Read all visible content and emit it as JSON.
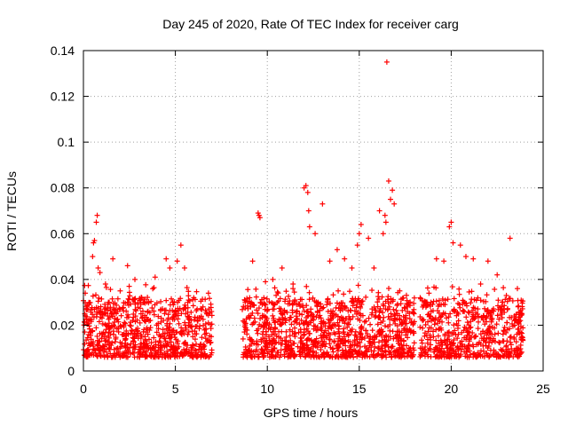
{
  "chart_data": {
    "type": "scatter",
    "title": "Day 245 of 2020, Rate Of TEC Index for receiver carg",
    "xlabel": "GPS time / hours",
    "ylabel": "ROTI / TECUs",
    "xlim": [
      0,
      25
    ],
    "ylim": [
      0,
      0.14
    ],
    "xticks": [
      0,
      5,
      10,
      15,
      20,
      25
    ],
    "yticks": [
      0,
      0.02,
      0.04,
      0.06,
      0.08,
      0.1,
      0.12,
      0.14
    ],
    "xtick_labels": [
      "0",
      "5",
      "10",
      "15",
      "20",
      "25"
    ],
    "ytick_labels": [
      "0",
      "0.02",
      "0.04",
      "0.06",
      "0.08",
      "0.1",
      "0.12",
      "0.14"
    ],
    "grid": true,
    "marker": "+",
    "series_color": "#ff0000",
    "data_gaps_hours": [
      [
        7.0,
        8.6
      ],
      [
        18.0,
        18.3
      ],
      [
        23.9,
        25
      ]
    ],
    "series": [
      {
        "name": "ROTI",
        "x": [
          0.1,
          0.3,
          0.5,
          0.55,
          0.6,
          0.7,
          0.75,
          0.8,
          0.9,
          1.2,
          1.4,
          1.6,
          2.0,
          2.4,
          2.8,
          3.3,
          3.9,
          4.5,
          4.7,
          5.1,
          5.3,
          5.5,
          6.0,
          6.5,
          6.8,
          8.8,
          9.2,
          9.5,
          9.55,
          9.6,
          9.9,
          10.3,
          10.8,
          11.4,
          12.0,
          12.1,
          12.2,
          12.25,
          12.3,
          12.6,
          13.0,
          13.4,
          13.8,
          14.2,
          14.6,
          14.9,
          15.0,
          15.1,
          15.5,
          15.8,
          16.1,
          16.3,
          16.4,
          16.45,
          16.5,
          16.6,
          16.7,
          16.8,
          16.9,
          17.2,
          17.6,
          18.5,
          18.9,
          19.2,
          19.6,
          19.9,
          20.0,
          20.1,
          20.5,
          20.8,
          21.2,
          21.6,
          22.0,
          22.5,
          23.0,
          23.2,
          23.6
        ],
        "y": [
          0.034,
          0.029,
          0.05,
          0.056,
          0.057,
          0.065,
          0.068,
          0.045,
          0.043,
          0.038,
          0.03,
          0.049,
          0.035,
          0.046,
          0.04,
          0.03,
          0.041,
          0.049,
          0.045,
          0.048,
          0.055,
          0.045,
          0.032,
          0.028,
          0.034,
          0.03,
          0.048,
          0.069,
          0.068,
          0.067,
          0.039,
          0.04,
          0.045,
          0.038,
          0.08,
          0.081,
          0.078,
          0.07,
          0.063,
          0.06,
          0.073,
          0.048,
          0.053,
          0.049,
          0.045,
          0.055,
          0.06,
          0.064,
          0.058,
          0.045,
          0.07,
          0.06,
          0.068,
          0.065,
          0.135,
          0.083,
          0.075,
          0.079,
          0.073,
          0.035,
          0.028,
          0.029,
          0.03,
          0.049,
          0.048,
          0.063,
          0.065,
          0.056,
          0.055,
          0.05,
          0.049,
          0.038,
          0.048,
          0.042,
          0.033,
          0.058,
          0.036
        ]
      }
    ]
  }
}
